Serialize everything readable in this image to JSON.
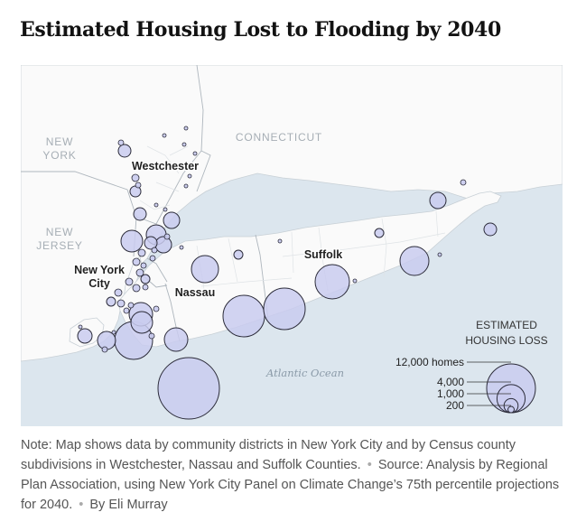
{
  "title": "Estimated Housing Lost to Flooding by 2040",
  "map": {
    "regions": {
      "new_york": [
        "NEW",
        "YORK"
      ],
      "connecticut": "CONNECTICUT",
      "new_jersey": [
        "NEW",
        "JERSEY"
      ]
    },
    "places": {
      "westchester": "Westchester",
      "new_york_city": [
        "New York",
        "City"
      ],
      "nassau": "Nassau",
      "suffolk": "Suffolk"
    },
    "ocean": "Atlantic Ocean",
    "colors": {
      "water": "#dce6ee",
      "land": "#fafafa",
      "bubble_fill": "#c9cbee",
      "bubble_stroke": "#2c2c3a"
    },
    "legend": {
      "title": [
        "ESTIMATED",
        "HOUSING LOSS"
      ],
      "entries": [
        {
          "label": "12,000 homes",
          "homes": 12000
        },
        {
          "label": "4,000",
          "homes": 4000
        },
        {
          "label": "1,000",
          "homes": 1000
        },
        {
          "label": "200",
          "homes": 200
        }
      ]
    }
  },
  "note": {
    "text": "Note: Map shows data by community districts in New York City and by Census county subdivisions in Westchester, Nassau and Suffolk Counties.",
    "source": "Source: Analysis by Regional Plan Association, using New York City Panel on Climate Change’s 75th percentile projections for 2040.",
    "byline": "By Eli Murray"
  }
}
